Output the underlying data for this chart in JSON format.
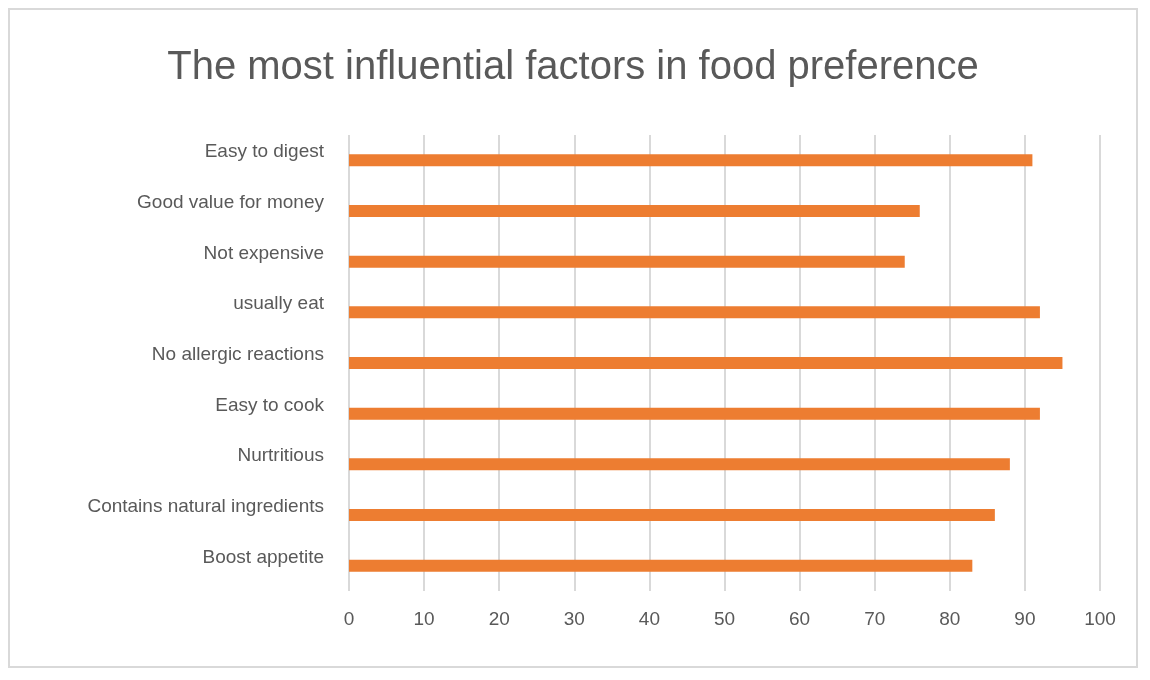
{
  "chart_data": {
    "type": "bar",
    "orientation": "horizontal",
    "title": "The most influential factors in food preference",
    "categories": [
      "Easy to digest",
      "Good value for money",
      "Not expensive",
      "usually eat",
      "No allergic reactions",
      "Easy to cook",
      "Nurtritious",
      "Contains natural ingredients",
      "Boost appetite"
    ],
    "values": [
      91,
      76,
      74,
      92,
      95,
      92,
      88,
      86,
      83
    ],
    "color": "#ed7d31",
    "xlim": [
      0,
      100
    ],
    "xticks": [
      0,
      10,
      20,
      30,
      40,
      50,
      60,
      70,
      80,
      90,
      100
    ],
    "grid": "x"
  }
}
